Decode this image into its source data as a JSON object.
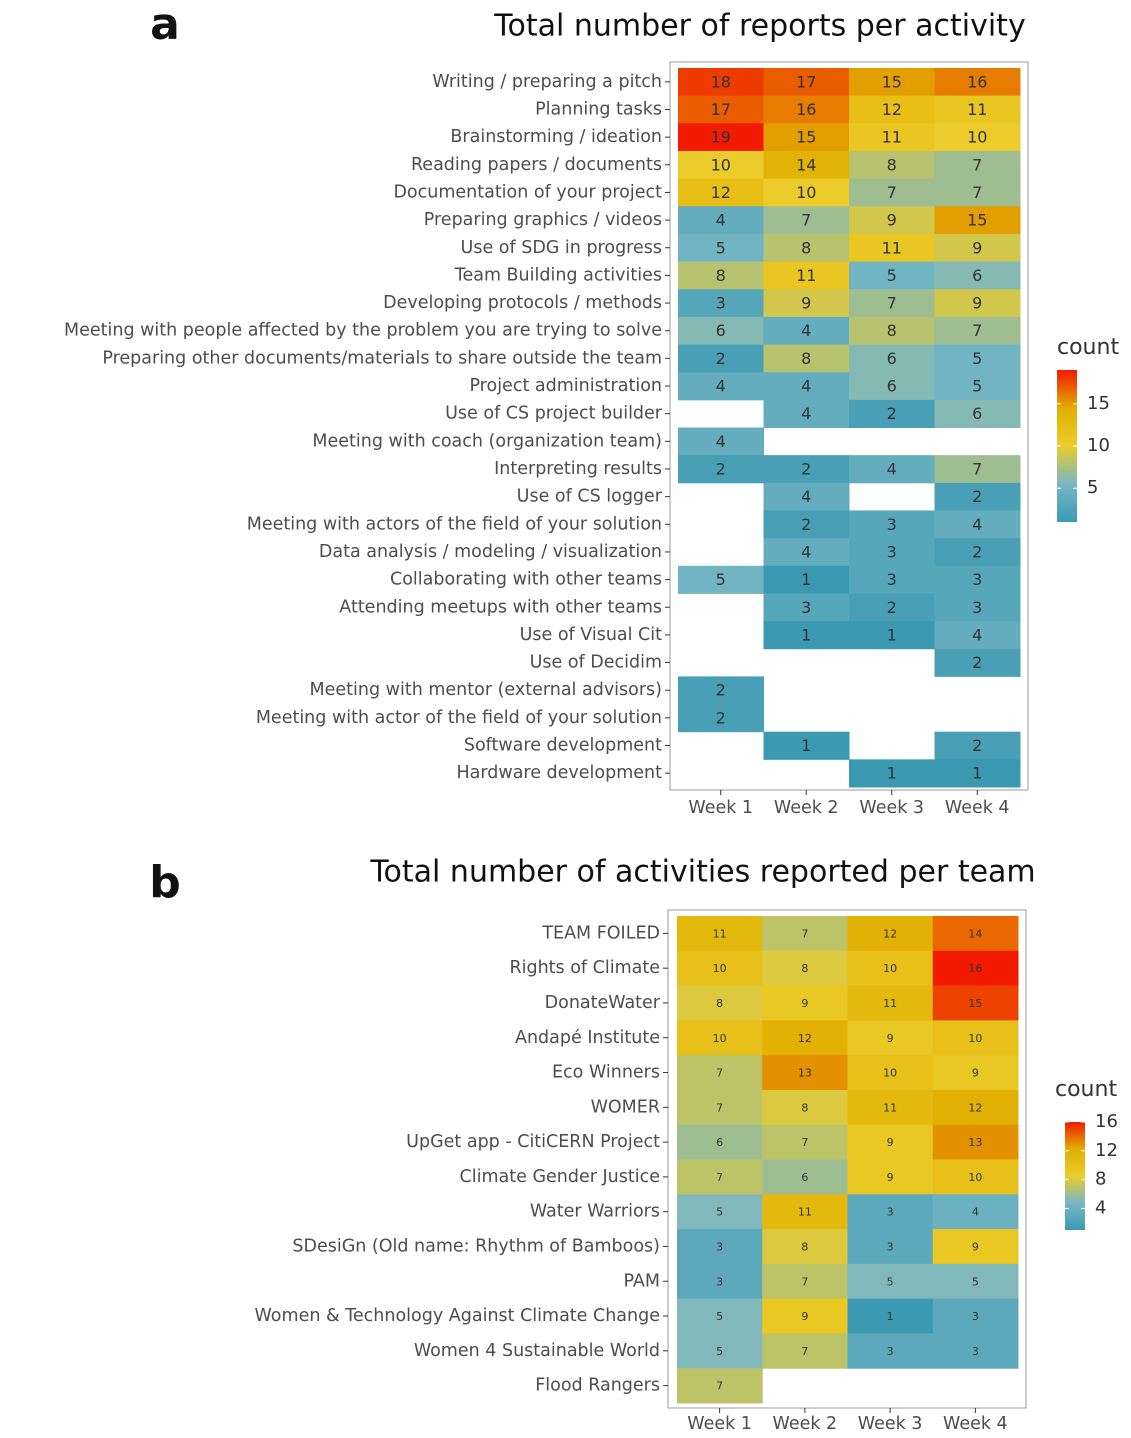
{
  "chart_data": [
    {
      "type": "heatmap",
      "label": "a",
      "title": "Total number of reports per activity",
      "categories": [
        "Week 1",
        "Week 2",
        "Week 3",
        "Week 4"
      ],
      "rows": [
        "Writing  / preparing a pitch",
        "Planning tasks",
        "Brainstorming / ideation",
        "Reading papers / documents",
        "Documentation of your project",
        "Preparing graphics / videos",
        "Use of SDG in progress",
        "Team Building activities",
        "Developing protocols / methods",
        "Meeting with people affected by the problem you are trying to solve",
        "Preparing other documents/materials to share outside the team",
        "Project administration",
        "Use of CS project builder",
        "Meeting with coach (organization team)",
        "Interpreting results",
        "Use of CS logger",
        "Meeting with actors of the field of your solution",
        "Data analysis / modeling / visualization",
        "Collaborating with other teams",
        "Attending meetups with other teams",
        "Use of Visual Cit",
        "Use of Decidim",
        "Meeting with mentor (external advisors)",
        "Meeting with actor of the field of your solution",
        "Software development",
        "Hardware development"
      ],
      "values": [
        [
          18,
          17,
          15,
          16
        ],
        [
          17,
          16,
          12,
          11
        ],
        [
          19,
          15,
          11,
          10
        ],
        [
          10,
          14,
          8,
          7
        ],
        [
          12,
          10,
          7,
          7
        ],
        [
          4,
          7,
          9,
          15
        ],
        [
          5,
          8,
          11,
          9
        ],
        [
          8,
          11,
          5,
          6
        ],
        [
          3,
          9,
          7,
          9
        ],
        [
          6,
          4,
          8,
          7
        ],
        [
          2,
          8,
          6,
          5
        ],
        [
          4,
          4,
          6,
          5
        ],
        [
          null,
          4,
          2,
          6
        ],
        [
          4,
          null,
          null,
          null
        ],
        [
          2,
          2,
          4,
          7
        ],
        [
          null,
          4,
          null,
          2
        ],
        [
          null,
          2,
          3,
          4
        ],
        [
          null,
          4,
          3,
          2
        ],
        [
          5,
          1,
          3,
          3
        ],
        [
          null,
          3,
          2,
          3
        ],
        [
          null,
          1,
          1,
          4
        ],
        [
          null,
          null,
          null,
          2
        ],
        [
          2,
          null,
          null,
          null
        ],
        [
          2,
          null,
          null,
          null
        ],
        [
          null,
          1,
          null,
          2
        ],
        [
          null,
          null,
          1,
          1
        ]
      ],
      "legend_title": "count",
      "colors": [
        "#3b9ab2",
        "#78b7c5",
        "#ebcc2a",
        "#e1af00",
        "#f21a00"
      ],
      "clim": [
        1,
        19
      ],
      "cticks": [
        5,
        10,
        15
      ]
    },
    {
      "type": "heatmap",
      "label": "b",
      "title": "Total number of activities reported per team",
      "categories": [
        "Week 1",
        "Week 2",
        "Week 3",
        "Week 4"
      ],
      "rows": [
        "TEAM FOILED",
        "Rights of Climate",
        "DonateWater",
        "Andapé Institute",
        "Eco Winners",
        "WOMER",
        "UpGet app - CitiCERN Project",
        "Climate Gender Justice",
        "Water Warriors",
        "SDesiGn (Old name: Rhythm of Bamboos)",
        "PAM",
        "Women & Technology Against Climate Change",
        "Women 4 Sustainable World",
        "Flood Rangers"
      ],
      "values": [
        [
          11,
          7,
          12,
          14
        ],
        [
          10,
          8,
          10,
          16
        ],
        [
          8,
          9,
          11,
          15
        ],
        [
          10,
          12,
          9,
          10
        ],
        [
          7,
          13,
          10,
          9
        ],
        [
          7,
          8,
          11,
          12
        ],
        [
          6,
          7,
          9,
          13
        ],
        [
          7,
          6,
          9,
          10
        ],
        [
          5,
          11,
          3,
          4
        ],
        [
          3,
          8,
          3,
          9
        ],
        [
          3,
          7,
          5,
          5
        ],
        [
          5,
          9,
          1,
          3
        ],
        [
          5,
          7,
          3,
          3
        ],
        [
          7,
          null,
          null,
          null
        ]
      ],
      "legend_title": "count",
      "colors": [
        "#3b9ab2",
        "#78b7c5",
        "#ebcc2a",
        "#e1af00",
        "#f21a00"
      ],
      "clim": [
        1,
        16
      ],
      "cticks": [
        4,
        8,
        12,
        16
      ]
    }
  ]
}
